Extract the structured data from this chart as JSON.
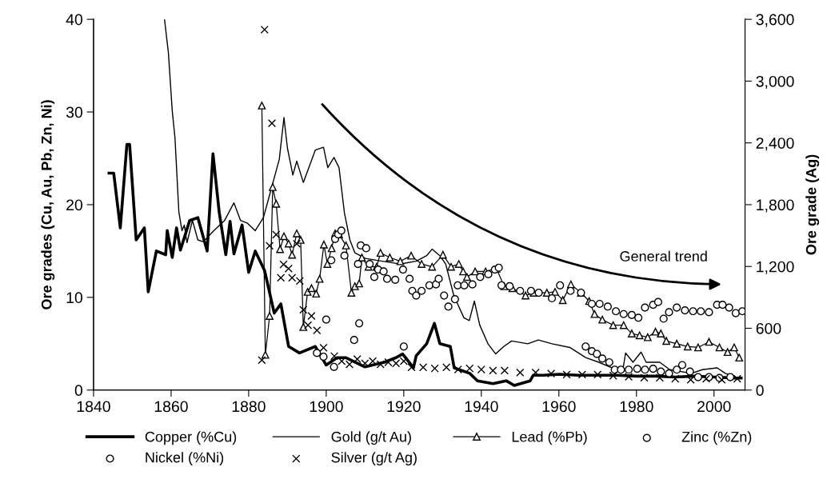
{
  "chart_data": {
    "type": "line",
    "ylabel": "Ore grades (Cu, Au, Pb, Zn, Ni)",
    "y2label": "Ore grade (Ag)",
    "annotations": [
      "General trend"
    ],
    "xlim": [
      1840,
      2008
    ],
    "xticks": [
      1840,
      1860,
      1880,
      1900,
      1920,
      1940,
      1960,
      1980,
      2000
    ],
    "ylim": [
      0,
      40
    ],
    "yticks": [
      0,
      10,
      20,
      30,
      40
    ],
    "y2lim": [
      0,
      3600
    ],
    "y2ticks": [
      0,
      {
        "value": 600,
        "label": "600"
      },
      {
        "value": 1200,
        "label": "1,200"
      },
      {
        "value": 1800,
        "label": "1,800"
      },
      {
        "value": 2400,
        "label": "2,400"
      },
      {
        "value": 3000,
        "label": "3,000"
      },
      {
        "value": 3600,
        "label": "3,600"
      }
    ],
    "grid": false,
    "legend": "bottom",
    "series": [
      {
        "name": "Copper (%Cu)",
        "color": "#000000",
        "marker": "none",
        "x": [
          1844.0,
          1845.2,
          1846.9,
          1848.6,
          1849.3,
          1851.0,
          1853.1,
          1854.1,
          1856.2,
          1858.6,
          1859.0,
          1860.3,
          1861.4,
          1862.4,
          1864.8,
          1866.9,
          1869.3,
          1870.8,
          1872.4,
          1874.1,
          1875.2,
          1876.2,
          1878.3,
          1880.0,
          1881.7,
          1884.1,
          1886.6,
          1888.3,
          1890.3,
          1893.1,
          1897.2,
          1900.0,
          1902.8,
          1905,
          1910,
          1915,
          1918,
          1919.7,
          1922.5,
          1923.2,
          1925.9,
          1927.9,
          1929.3,
          1932.0,
          1933.0,
          1937.0,
          1939.0,
          1943.0,
          1946.4,
          1948.5,
          1952.6,
          1953.4,
          1956,
          1960,
          1965,
          1970,
          1975,
          1980,
          1985,
          1990,
          1995,
          2000,
          2005,
          2007
        ],
        "values": [
          23.4,
          23.4,
          17.5,
          26.5,
          26.5,
          16.2,
          17.5,
          10.6,
          15.0,
          14.6,
          17.2,
          14.3,
          17.5,
          15.1,
          18.3,
          18.6,
          15.0,
          25.5,
          19.2,
          14.6,
          18.2,
          14.7,
          17.8,
          12.7,
          15.0,
          12.9,
          8.3,
          9.3,
          4.7,
          4.0,
          4.7,
          2.7,
          3.5,
          3.5,
          2.5,
          3.0,
          3.5,
          3.9,
          2.4,
          3.7,
          5.0,
          7.2,
          5.0,
          4.7,
          2.4,
          1.8,
          1.0,
          0.7,
          1.0,
          0.5,
          1.0,
          1.6,
          1.6,
          1.7,
          1.6,
          1.6,
          1.6,
          1.5,
          1.5,
          1.4,
          1.5,
          1.4,
          1.3,
          1.3
        ]
      },
      {
        "name": "Gold (g/t Au)",
        "color": "#000000",
        "marker": "none",
        "x": [
          1858.3,
          1859.3,
          1860.3,
          1861.0,
          1862.0,
          1862.8,
          1863.4,
          1864.1,
          1865.5,
          1866.9,
          1868.3,
          1871.0,
          1873.8,
          1876.2,
          1877.9,
          1879.7,
          1881.7,
          1883.8,
          1885.5,
          1887.9,
          1889.1,
          1890.0,
          1891.4,
          1892.4,
          1894.1,
          1897.2,
          1899.3,
          1900.4,
          1902.0,
          1903.3,
          1904.7,
          1906.1,
          1907.4,
          1910.1,
          1914.4,
          1919.1,
          1923.2,
          1925.9,
          1927.3,
          1929.3,
          1930.8,
          1932.9,
          1935.5,
          1936.9,
          1938.2,
          1939.6,
          1941.7,
          1943.7,
          1945.8,
          1947.8,
          1952.0,
          1954.7,
          1958.2,
          1962.8,
          1966.9,
          1970.3,
          1973.7,
          1976.5,
          1977.2,
          1979.1,
          1981.2,
          1982.5,
          1986.0,
          1988.6,
          1994.2,
          1997.0,
          2000.8,
          2002.9,
          2005.6
        ],
        "values": [
          40,
          36.4,
          30.1,
          27.2,
          19.2,
          17.2,
          17.8,
          15.9,
          18.3,
          16.2,
          16.0,
          17.2,
          18.3,
          20.2,
          18.3,
          18.0,
          17.2,
          18.6,
          21.2,
          24.9,
          29.4,
          26.1,
          23.2,
          24.7,
          22.4,
          25.9,
          26.2,
          24.0,
          25.1,
          24.0,
          19.1,
          16.2,
          14.8,
          14.2,
          13.9,
          13.6,
          13.9,
          14.5,
          15.2,
          14.5,
          13.6,
          10.2,
          7.8,
          7.5,
          9.6,
          7.0,
          5.0,
          3.9,
          4.7,
          5.3,
          5.0,
          5.4,
          5.0,
          4.6,
          3.5,
          3.0,
          2.4,
          2.2,
          4.0,
          3.0,
          4.1,
          3.0,
          3.0,
          2.2,
          1.8,
          2.2,
          2.4,
          1.8,
          1.4
        ]
      },
      {
        "name": "Lead (%Pb)",
        "color": "#000000",
        "marker": "triangle",
        "x": [
          1883.4,
          1884.3,
          1885.4,
          1886.2,
          1887.1,
          1888.1,
          1889.1,
          1890.3,
          1891.2,
          1892.4,
          1893.4,
          1894.1,
          1895.2,
          1896.2,
          1897.4,
          1898.3,
          1899.4,
          1900.3,
          1901.4,
          1902.3,
          1903.3,
          1905.1,
          1906.5,
          1907.4,
          1908.5,
          1909.2,
          1910.9,
          1913.0,
          1914.0,
          1916.4,
          1919.1,
          1921.9,
          1924.6,
          1927.3,
          1930.1,
          1932.2,
          1934.2,
          1935.3,
          1936.3,
          1938.4,
          1941.1,
          1943.9,
          1945.9,
          1948.0,
          1951.4,
          1953.5,
          1956.9,
          1959.0,
          1961.0,
          1963.1,
          1965.7,
          1967.8,
          1969.2,
          1971.2,
          1974.0,
          1976.7,
          1978.8,
          1980.8,
          1982.9,
          1984.9,
          1986.3,
          1987.7,
          1990.4,
          1993.2,
          1995.9,
          1998.7,
          2001.4,
          2003.5,
          2005.2,
          2006.5
        ],
        "values": [
          30.7,
          3.8,
          8.0,
          21.9,
          20.1,
          15.2,
          16.6,
          15.8,
          14.6,
          16.9,
          16.2,
          6.8,
          10.6,
          11.0,
          10.4,
          12.0,
          15.7,
          13.6,
          15.3,
          16.9,
          16.8,
          15.6,
          10.5,
          11.2,
          11.5,
          14.3,
          13.3,
          13.3,
          14.8,
          14.3,
          13.9,
          14.5,
          13.6,
          13.3,
          14.6,
          13.3,
          13.6,
          12.8,
          12.2,
          12.8,
          12.8,
          13.1,
          11.2,
          11.0,
          10.2,
          10.5,
          10.5,
          10.6,
          9.7,
          11.4,
          10.5,
          9.6,
          8.2,
          7.6,
          7.0,
          7.0,
          6.1,
          5.9,
          5.7,
          6.3,
          6.1,
          5.3,
          5.0,
          4.7,
          4.6,
          5.2,
          4.6,
          4.1,
          4.6,
          3.5
        ]
      },
      {
        "name": "Zinc (%Zn)",
        "type": "scatter",
        "color": "#000000",
        "marker": "circle",
        "x": [
          1901.3,
          1902.3,
          1903.1,
          1903.9,
          1904.7,
          1908.2,
          1908.9,
          1910.3,
          1911.2,
          1912.4,
          1913.4,
          1914.8,
          1915.7,
          1917.8,
          1919.8,
          1921.5,
          1922.2,
          1923.2,
          1924.6,
          1926.6,
          1928.3,
          1929.0,
          1930.4,
          1931.5,
          1933.2,
          1933.9,
          1935.6,
          1937.7,
          1939.7,
          1941.8,
          1943.5,
          1944.5,
          1945.2,
          1947.3,
          1950.0,
          1952.8,
          1954.8,
          1958.2,
          1960.3,
          1963.0,
          1965.7,
          1968.5,
          1970.5,
          1972.6,
          1974.7,
          1976.7,
          1978.8,
          1980.5,
          1982.2,
          1984.3,
          1985.6,
          1987.0,
          1988.4,
          1990.4,
          1992.5,
          1994.6,
          1996.6,
          1998.7,
          2000.8,
          2002.2,
          2003.9,
          2005.6,
          2007.3
        ],
        "values": [
          14.0,
          16.3,
          16.8,
          17.2,
          14.5,
          13.6,
          15.6,
          15.3,
          13.6,
          12.2,
          13.0,
          12.8,
          12.0,
          11.9,
          13.0,
          12.0,
          10.7,
          10.2,
          10.7,
          11.3,
          11.4,
          12.0,
          10.2,
          9.0,
          9.8,
          11.3,
          11.3,
          11.4,
          12.2,
          12.5,
          13.0,
          13.2,
          11.3,
          11.2,
          10.7,
          10.7,
          10.5,
          9.9,
          11.3,
          10.7,
          10.5,
          9.3,
          9.3,
          9.0,
          8.5,
          8.2,
          8.1,
          7.8,
          8.9,
          9.2,
          9.5,
          7.7,
          8.4,
          8.9,
          8.6,
          8.5,
          8.5,
          8.4,
          9.2,
          9.2,
          8.9,
          8.3,
          8.5
        ]
      },
      {
        "name": "Nickel (%Ni)",
        "type": "scatter",
        "color": "#000000",
        "marker": "circle",
        "x": [
          1897.6,
          1899.3,
          1900.0,
          1902.0,
          1907.2,
          1908.5,
          1920.0,
          1966.9,
          1968.5,
          1969.8,
          1971.2,
          1973.0,
          1974.4,
          1976.0,
          1978.0,
          1980.2,
          1982.2,
          1984.3,
          1986.3,
          1988.4,
          1990.4,
          1991.8,
          1993.8,
          1995.9,
          1998.7,
          2001.4,
          2004.2
        ],
        "values": [
          4.0,
          3.6,
          7.6,
          2.5,
          5.4,
          7.2,
          4.7,
          4.7,
          4.2,
          3.9,
          3.4,
          3.0,
          2.2,
          2.2,
          2.2,
          2.3,
          2.2,
          2.3,
          2.0,
          1.8,
          2.2,
          2.7,
          2.0,
          1.4,
          1.4,
          1.3,
          1.4
        ]
      },
      {
        "name": "Silver (g/t Ag)",
        "type": "scatter",
        "axis": "y2",
        "color": "#000000",
        "marker": "cross",
        "x": [
          1883.4,
          1884.1,
          1885.4,
          1886.0,
          1887.1,
          1888.3,
          1889.0,
          1890.3,
          1891.2,
          1892.4,
          1893.2,
          1894.1,
          1895.3,
          1896.2,
          1897.6,
          1899.3,
          1902.1,
          1904,
          1906,
          1908,
          1910,
          1912,
          1914,
          1916,
          1918,
          1920,
          1922,
          1925,
          1928,
          1931,
          1934,
          1937,
          1940,
          1943,
          1946,
          1950,
          1954,
          1958,
          1962,
          1966,
          1970,
          1974,
          1978,
          1982,
          1986,
          1990,
          1994,
          1998,
          2002,
          2006
        ],
        "values": [
          290,
          3500,
          1400,
          2590,
          1510,
          1090,
          1220,
          1180,
          1090,
          1420,
          1060,
          780,
          630,
          720,
          580,
          410,
          330,
          280,
          250,
          300,
          260,
          280,
          250,
          270,
          260,
          280,
          220,
          220,
          210,
          220,
          200,
          210,
          200,
          190,
          190,
          170,
          170,
          160,
          150,
          150,
          150,
          140,
          130,
          120,
          120,
          110,
          100,
          110,
          100,
          110
        ]
      }
    ]
  }
}
